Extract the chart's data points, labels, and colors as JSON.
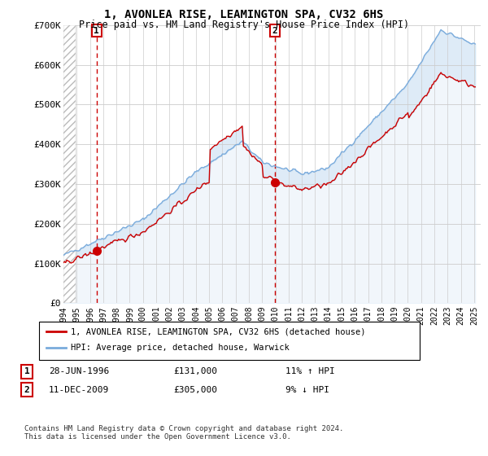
{
  "title": "1, AVONLEA RISE, LEAMINGTON SPA, CV32 6HS",
  "subtitle": "Price paid vs. HM Land Registry's House Price Index (HPI)",
  "hpi_label": "HPI: Average price, detached house, Warwick",
  "price_label": "1, AVONLEA RISE, LEAMINGTON SPA, CV32 6HS (detached house)",
  "sale1_date": "28-JUN-1996",
  "sale1_price": 131000,
  "sale1_hpi": "11% ↑ HPI",
  "sale2_date": "11-DEC-2009",
  "sale2_price": 305000,
  "sale2_hpi": "9% ↓ HPI",
  "footer": "Contains HM Land Registry data © Crown copyright and database right 2024.\nThis data is licensed under the Open Government Licence v3.0.",
  "price_color": "#cc0000",
  "hpi_color": "#7aabdc",
  "fill_color": "#c8dff2",
  "background_color": "#ffffff",
  "grid_color": "#cccccc",
  "ylim": [
    0,
    700000
  ],
  "yticks": [
    0,
    100000,
    200000,
    300000,
    400000,
    500000,
    600000,
    700000
  ],
  "ytick_labels": [
    "£0",
    "£100K",
    "£200K",
    "£300K",
    "£400K",
    "£500K",
    "£600K",
    "£700K"
  ],
  "xlim_start": 1994.0,
  "xlim_end": 2025.5,
  "xticks": [
    1994,
    1995,
    1996,
    1997,
    1998,
    1999,
    2000,
    2001,
    2002,
    2003,
    2004,
    2005,
    2006,
    2007,
    2008,
    2009,
    2010,
    2011,
    2012,
    2013,
    2014,
    2015,
    2016,
    2017,
    2018,
    2019,
    2020,
    2021,
    2022,
    2023,
    2024,
    2025
  ],
  "sale1_x": 1996.5,
  "sale2_x": 2009.95,
  "marker1_label": "1",
  "marker2_label": "2",
  "hatch_end": 1994.9
}
